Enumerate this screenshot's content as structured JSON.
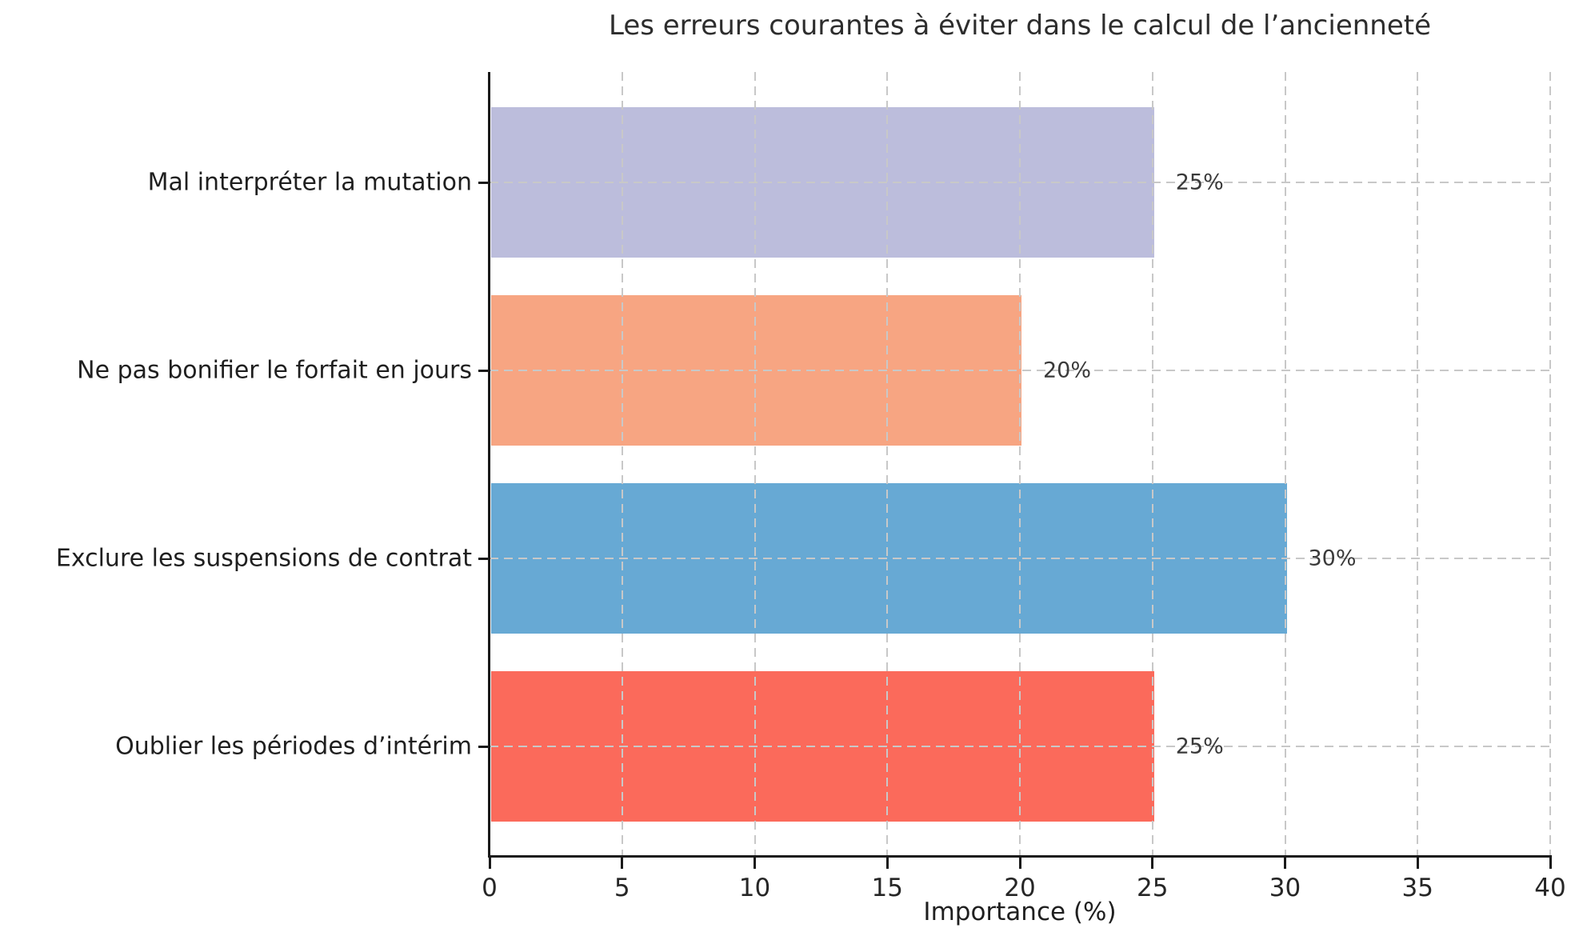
{
  "chart_data": {
    "type": "bar",
    "orientation": "horizontal",
    "title": "Les erreurs courantes à éviter dans le calcul de l’ancienneté",
    "xlabel": "Importance (%)",
    "categories": [
      "Mal interpréter la mutation",
      "Ne pas bonifier le forfait en jours",
      "Exclure les suspensions de contrat",
      "Oublier les périodes d’intérim"
    ],
    "values": [
      25,
      20,
      30,
      25
    ],
    "value_labels": [
      "25%",
      "20%",
      "30%",
      "25%"
    ],
    "bar_colors": [
      "#bcbddc",
      "#f7a582",
      "#67a9d4",
      "#fb6a5b"
    ],
    "xlim": [
      0,
      40
    ],
    "xticks": [
      0,
      5,
      10,
      15,
      20,
      25,
      30,
      35,
      40
    ],
    "grid": "dashed, drawn over bars, vertical at x ticks and horizontal at bar centers",
    "grid_color": "#c8c8c8",
    "spine_color": "#1a1a1a",
    "legend": "none"
  }
}
